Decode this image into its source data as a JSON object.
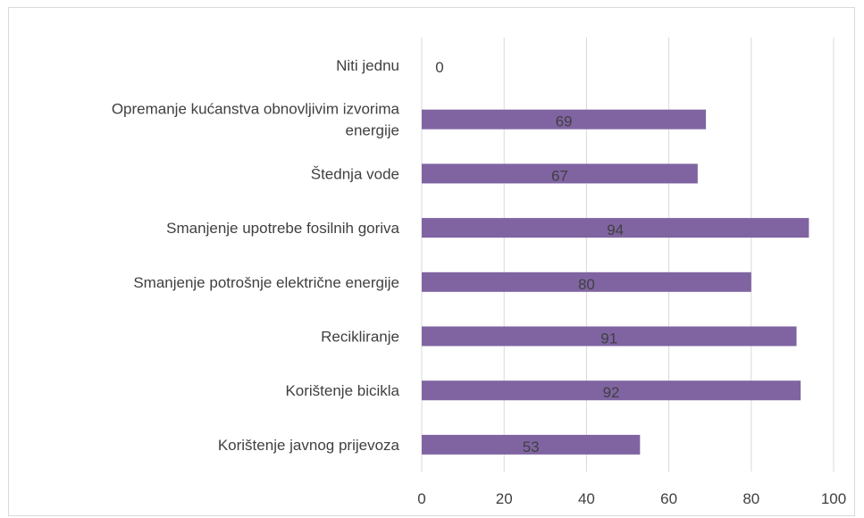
{
  "chart_data": {
    "type": "bar",
    "orientation": "horizontal",
    "title": "",
    "xlabel": "",
    "ylabel": "",
    "categories": [
      "Niti jednu",
      "Opremanje kućanstva obnovljivim izvorima energije",
      "Štednja vode",
      "Smanjenje upotrebe fosilnih goriva",
      "Smanjenje potrošnje električne energije",
      "Recikliranje",
      "Korištenje bicikla",
      "Korištenje javnog prijevoza"
    ],
    "category_lines": [
      [
        "Niti jednu"
      ],
      [
        "Opremanje kućanstva obnovljivim izvorima",
        "energije"
      ],
      [
        "Štednja vode"
      ],
      [
        "Smanjenje upotrebe fosilnih goriva"
      ],
      [
        "Smanjenje potrošnje električne energije"
      ],
      [
        "Recikliranje"
      ],
      [
        "Korištenje bicikla"
      ],
      [
        "Korištenje javnog prijevoza"
      ]
    ],
    "values": [
      0,
      69,
      67,
      94,
      80,
      91,
      92,
      53
    ],
    "data_labels": [
      "0",
      "69",
      "67",
      "94",
      "80",
      "91",
      "92",
      "53"
    ],
    "xlim": [
      0,
      100
    ],
    "ticks": [
      "0",
      "20",
      "40",
      "60",
      "80",
      "100"
    ],
    "grid": true,
    "legend": "none",
    "colors": {
      "bar": "#8064a2",
      "grid": "#d9d9d9",
      "text": "#404040",
      "border": "#d9d9d9"
    }
  }
}
